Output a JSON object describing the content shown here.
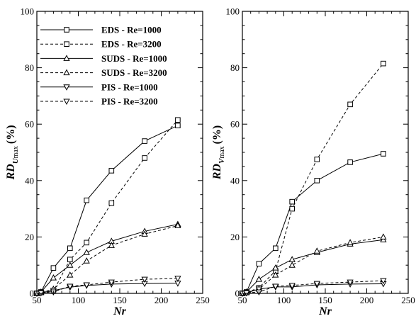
{
  "chart_data": [
    {
      "type": "line",
      "xlabel": "Nr",
      "ylabel_main": "RD",
      "ylabel_sub": "U max",
      "ylabel_unit": "(%)",
      "xlim": [
        50,
        250
      ],
      "ylim": [
        0,
        100
      ],
      "xticks": [
        50,
        100,
        150,
        200,
        250
      ],
      "yticks": [
        0,
        20,
        40,
        60,
        80,
        100
      ],
      "grid": false,
      "legend": {
        "placement": "top-left",
        "entries": [
          "EDS - Re=1000",
          "EDS - Re=3200",
          "SUDS - Re=1000",
          "SUDS - Re=3200",
          "PIS - Re=1000",
          "PIS - Re=3200"
        ]
      },
      "series": [
        {
          "name": "EDS - Re=1000",
          "dash": "solid",
          "marker": "square",
          "x": [
            50,
            55,
            70,
            90,
            110,
            140,
            180,
            220
          ],
          "y": [
            0,
            0.5,
            9,
            16,
            33,
            43.5,
            54,
            59.5
          ]
        },
        {
          "name": "EDS - Re=3200",
          "dash": "dashed",
          "marker": "square",
          "x": [
            50,
            55,
            70,
            90,
            110,
            140,
            180,
            220
          ],
          "y": [
            0,
            0.3,
            0.8,
            12,
            18,
            32,
            48,
            61.5
          ]
        },
        {
          "name": "SUDS - Re=1000",
          "dash": "solid",
          "marker": "triangle-up",
          "x": [
            50,
            55,
            70,
            90,
            110,
            140,
            180,
            220
          ],
          "y": [
            0,
            0.5,
            5.5,
            10,
            14.5,
            18.5,
            22,
            24.5
          ]
        },
        {
          "name": "SUDS - Re=3200",
          "dash": "dashed",
          "marker": "triangle-up",
          "x": [
            50,
            55,
            70,
            90,
            110,
            140,
            180,
            220
          ],
          "y": [
            0,
            0.3,
            1.5,
            6.5,
            11.5,
            17,
            21,
            24
          ]
        },
        {
          "name": "PIS - Re=1000",
          "dash": "solid",
          "marker": "triangle-down",
          "x": [
            50,
            55,
            70,
            90,
            110,
            140,
            180,
            220
          ],
          "y": [
            0,
            0.2,
            1,
            2.2,
            2.8,
            3.3,
            3.5,
            3.6
          ]
        },
        {
          "name": "PIS - Re=3200",
          "dash": "dashed",
          "marker": "triangle-down",
          "x": [
            50,
            55,
            70,
            90,
            110,
            140,
            180,
            220
          ],
          "y": [
            0,
            0.2,
            0.5,
            2.5,
            3,
            4,
            5,
            5.3
          ]
        }
      ]
    },
    {
      "type": "line",
      "xlabel": "Nr",
      "ylabel_main": "RD",
      "ylabel_sub": "V max",
      "ylabel_unit": "(%)",
      "xlim": [
        50,
        250
      ],
      "ylim": [
        0,
        100
      ],
      "xticks": [
        50,
        100,
        150,
        200,
        250
      ],
      "yticks": [
        0,
        20,
        40,
        60,
        80,
        100
      ],
      "grid": false,
      "series": [
        {
          "name": "EDS - Re=1000",
          "dash": "solid",
          "marker": "square",
          "x": [
            50,
            55,
            70,
            90,
            110,
            140,
            180,
            220
          ],
          "y": [
            0,
            0.5,
            10.5,
            16,
            32.5,
            40,
            46.5,
            49.5
          ]
        },
        {
          "name": "EDS - Re=3200",
          "dash": "dashed",
          "marker": "square",
          "x": [
            50,
            55,
            70,
            90,
            110,
            140,
            180,
            220
          ],
          "y": [
            0,
            0.3,
            2,
            8,
            30,
            47.5,
            67,
            81.5
          ]
        },
        {
          "name": "SUDS - Re=1000",
          "dash": "solid",
          "marker": "triangle-up",
          "x": [
            50,
            55,
            70,
            90,
            110,
            140,
            180,
            220
          ],
          "y": [
            0,
            0.5,
            5,
            9,
            12,
            14.5,
            17.5,
            19
          ]
        },
        {
          "name": "SUDS - Re=3200",
          "dash": "dashed",
          "marker": "triangle-up",
          "x": [
            50,
            55,
            70,
            90,
            110,
            140,
            180,
            220
          ],
          "y": [
            0,
            0.3,
            1.5,
            6.5,
            10,
            15,
            18,
            20
          ]
        },
        {
          "name": "PIS - Re=1000",
          "dash": "solid",
          "marker": "triangle-down",
          "x": [
            50,
            55,
            70,
            90,
            110,
            140,
            180,
            220
          ],
          "y": [
            0,
            0.2,
            1.5,
            2.3,
            2.3,
            3,
            3.3,
            3.4
          ]
        },
        {
          "name": "PIS - Re=3200",
          "dash": "dashed",
          "marker": "triangle-down",
          "x": [
            50,
            55,
            70,
            90,
            110,
            140,
            180,
            220
          ],
          "y": [
            0,
            0.2,
            0.5,
            2.5,
            2.8,
            3.5,
            4,
            4.5
          ]
        }
      ]
    }
  ]
}
